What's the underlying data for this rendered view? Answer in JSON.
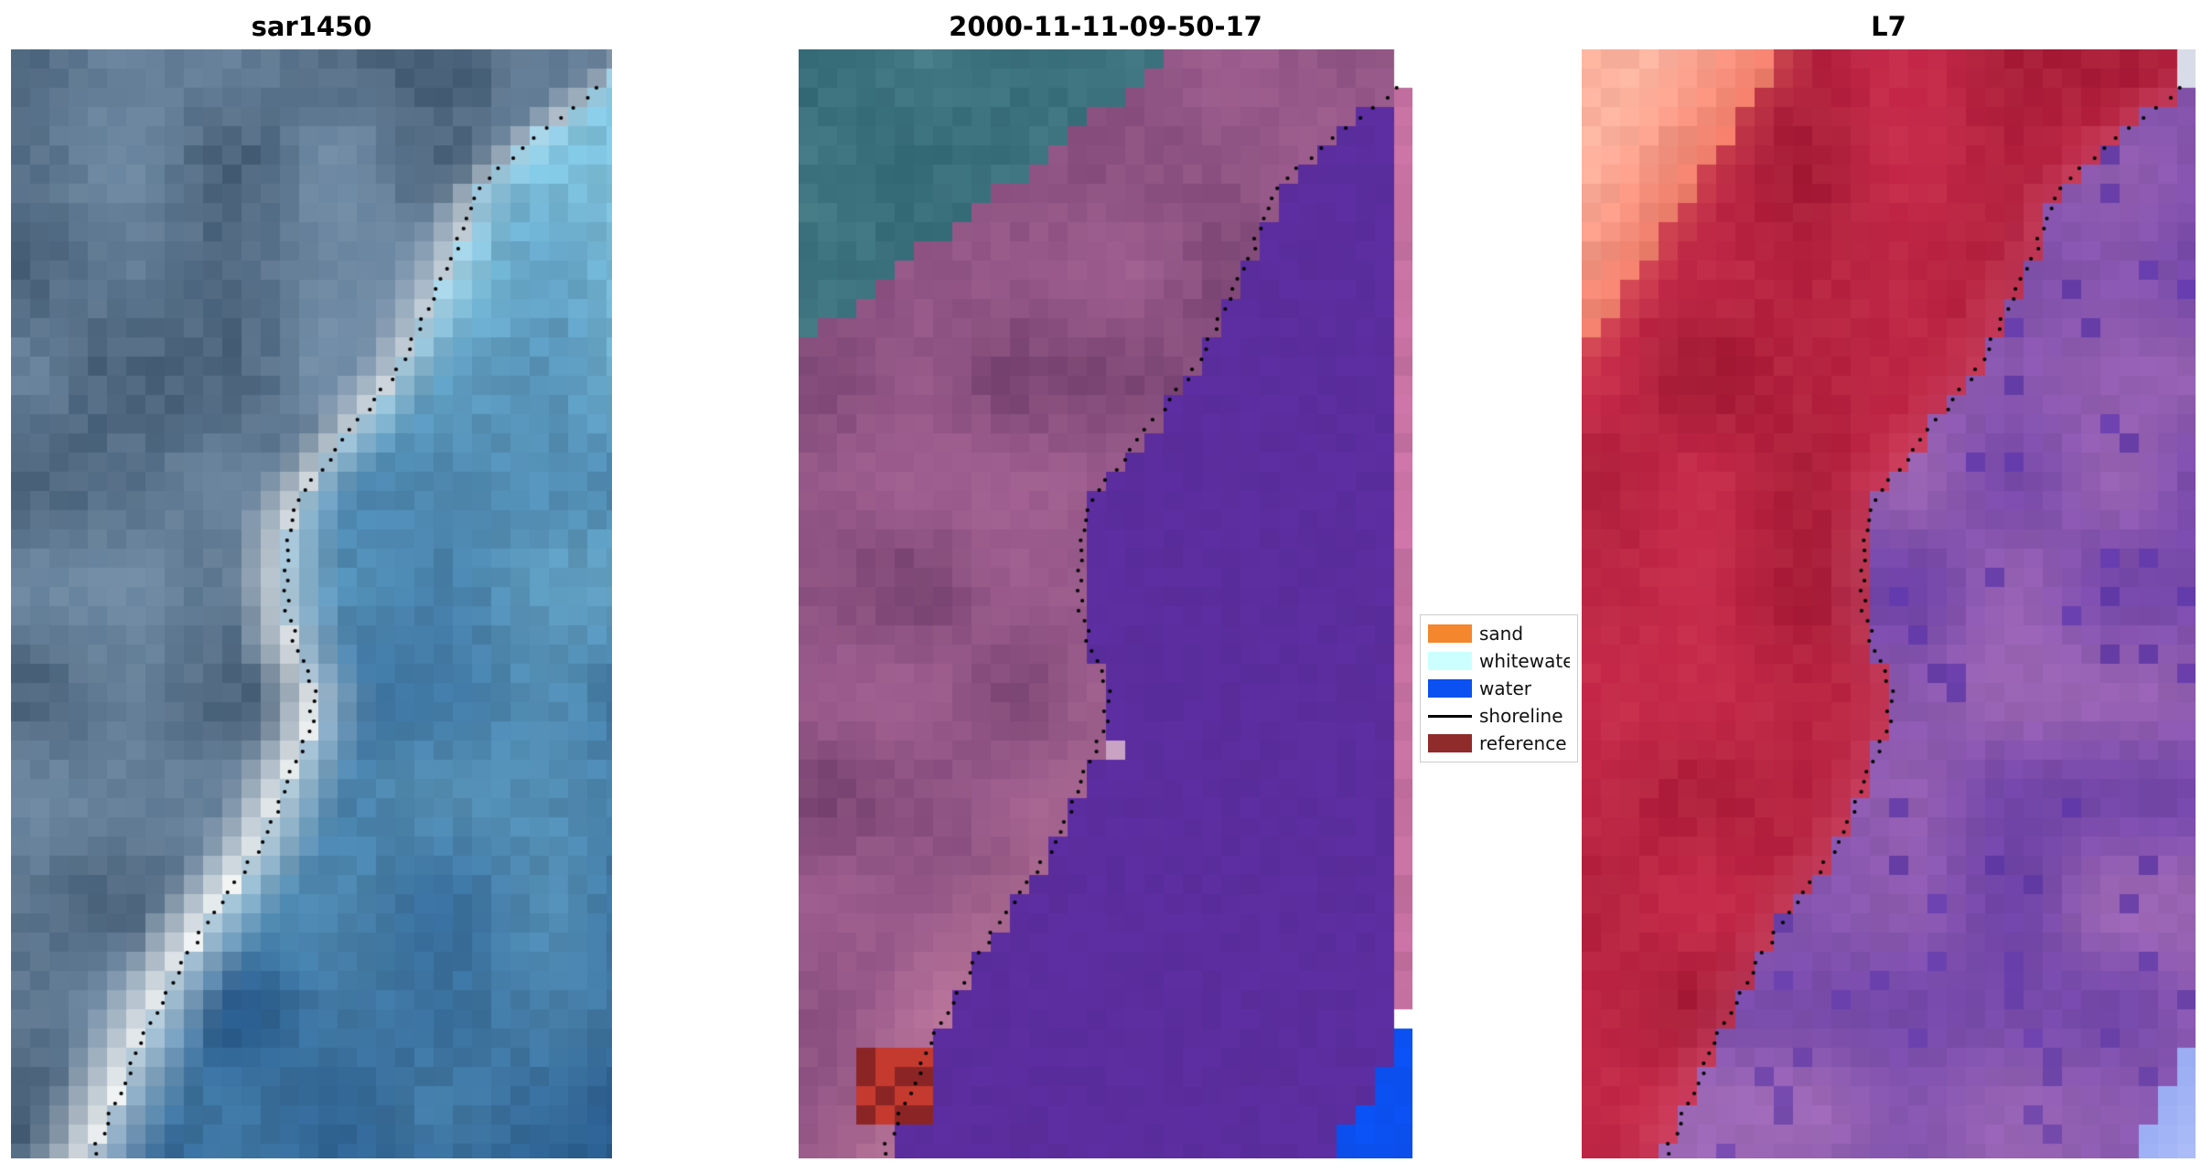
{
  "figure": {
    "background": "#ffffff"
  },
  "panels": [
    {
      "title": "sar1450"
    },
    {
      "title": "2000-11-11-09-50-17"
    },
    {
      "title": "L7"
    }
  ],
  "legend": {
    "items": [
      {
        "label": "sand",
        "swatch": "patch",
        "color": "#f4862e"
      },
      {
        "label": "whitewater",
        "swatch": "patch",
        "color": "#ccffff"
      },
      {
        "label": "water",
        "swatch": "patch",
        "color": "#0b50f0"
      },
      {
        "label": "shoreline",
        "swatch": "line",
        "color": "#000000"
      },
      {
        "label": "reference",
        "swatch": "patch",
        "color": "#8f2b2b"
      }
    ]
  },
  "chart_data": [
    {
      "type": "heatmap",
      "kind": "sar",
      "title": "sar1450",
      "seed": 11,
      "palette": {
        "land": "#6d88a3",
        "land_dark": "#415a72",
        "land_light": "#8fa6bc",
        "water": "#3f83b8",
        "water_light": "#7fc3de",
        "water_deep": "#2a5d8e",
        "band": "#f4f6f5"
      },
      "shoreline_uv": [
        [
          0.955,
          0.045
        ],
        [
          0.85,
          0.09
        ],
        [
          0.78,
          0.125
        ],
        [
          0.74,
          0.18
        ],
        [
          0.69,
          0.24
        ],
        [
          0.65,
          0.285
        ],
        [
          0.58,
          0.335
        ],
        [
          0.49,
          0.395
        ],
        [
          0.462,
          0.43
        ],
        [
          0.455,
          0.49
        ],
        [
          0.474,
          0.54
        ],
        [
          0.508,
          0.578
        ],
        [
          0.497,
          0.615
        ],
        [
          0.462,
          0.66
        ],
        [
          0.415,
          0.72
        ],
        [
          0.333,
          0.78
        ],
        [
          0.263,
          0.845
        ],
        [
          0.205,
          0.91
        ],
        [
          0.157,
          0.97
        ],
        [
          0.135,
          1.0
        ]
      ]
    },
    {
      "type": "heatmap",
      "kind": "classification",
      "title": "2000-11-11-09-50-17",
      "seed": 23,
      "palette": {
        "land": "#9a5a8c",
        "land_dark": "#74406e",
        "land_light": "#b4739f",
        "shore_pink": "#d489a8",
        "water": "#5b2d9e",
        "teal": "#2f6471",
        "teal_light": "#4b828c",
        "strip": "#c671a2",
        "nodata": "#ffffff",
        "blue": "#0b50f0",
        "ref_red": "#c43a2f",
        "ref_dark": "#8b2525",
        "pink_dot": "#c9a3c4"
      },
      "shoreline_uv": [
        [
          0.955,
          0.045
        ],
        [
          0.85,
          0.09
        ],
        [
          0.78,
          0.125
        ],
        [
          0.74,
          0.18
        ],
        [
          0.69,
          0.24
        ],
        [
          0.65,
          0.285
        ],
        [
          0.58,
          0.335
        ],
        [
          0.49,
          0.395
        ],
        [
          0.462,
          0.43
        ],
        [
          0.455,
          0.49
        ],
        [
          0.474,
          0.54
        ],
        [
          0.508,
          0.578
        ],
        [
          0.497,
          0.615
        ],
        [
          0.462,
          0.66
        ],
        [
          0.415,
          0.72
        ],
        [
          0.333,
          0.78
        ],
        [
          0.263,
          0.845
        ],
        [
          0.205,
          0.91
        ],
        [
          0.157,
          0.97
        ],
        [
          0.135,
          1.0
        ]
      ]
    },
    {
      "type": "heatmap",
      "kind": "optical",
      "title": "L7",
      "seed": 37,
      "palette": {
        "land": "#c32647",
        "land_dark": "#9c132f",
        "land_light": "#d84f5e",
        "salmon": "#ee7b68",
        "salmon_light": "#ffb39f",
        "water": "#9a64b4",
        "water_dark": "#6a3fa6",
        "water_deep": "#5c35a8",
        "blue": "#8fa3f0",
        "blue_light": "#c3d2ff",
        "notch": "#d8dce8"
      },
      "shoreline_uv": [
        [
          0.955,
          0.045
        ],
        [
          0.85,
          0.09
        ],
        [
          0.78,
          0.125
        ],
        [
          0.74,
          0.18
        ],
        [
          0.69,
          0.24
        ],
        [
          0.65,
          0.285
        ],
        [
          0.58,
          0.335
        ],
        [
          0.49,
          0.395
        ],
        [
          0.462,
          0.43
        ],
        [
          0.455,
          0.49
        ],
        [
          0.474,
          0.54
        ],
        [
          0.508,
          0.578
        ],
        [
          0.497,
          0.615
        ],
        [
          0.462,
          0.66
        ],
        [
          0.415,
          0.72
        ],
        [
          0.333,
          0.78
        ],
        [
          0.263,
          0.845
        ],
        [
          0.205,
          0.91
        ],
        [
          0.157,
          0.97
        ],
        [
          0.135,
          1.0
        ]
      ]
    }
  ]
}
